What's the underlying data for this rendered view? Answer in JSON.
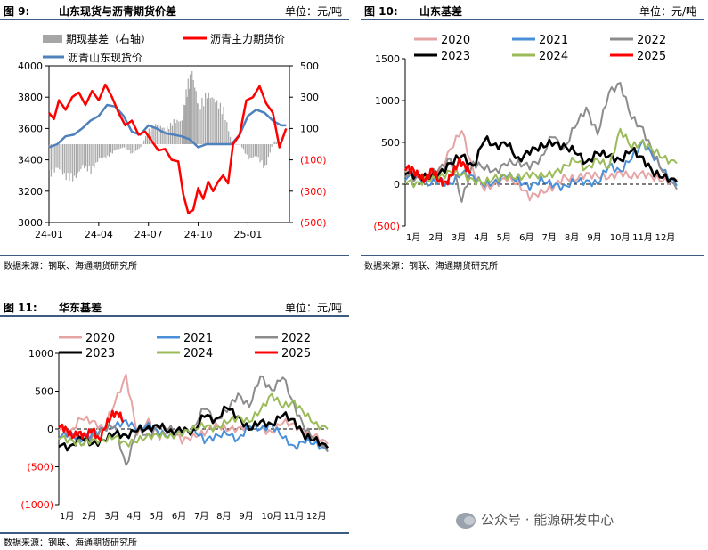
{
  "fig9": {
    "no": "图 9:",
    "title": "山东现货与沥青期货价差",
    "unit": "单位：元/吨",
    "source": "数据来源：钢联、海通期货研究所",
    "legend": [
      "期现基差（右轴）",
      "沥青主力期货价",
      "沥青山东现货价"
    ],
    "colors": {
      "basis": "#a6a6a6",
      "futures": "#ff0000",
      "spot": "#4f81bd"
    }
  },
  "fig10": {
    "no": "图 10:",
    "title": "山东基差",
    "unit": "单位：元/吨",
    "source": "数据来源：钢联、海通期货研究所"
  },
  "fig11": {
    "no": "图 11:",
    "title": "华东基差",
    "unit": "单位：元/吨",
    "source": "数据来源：钢联、海通期货研究所"
  },
  "watermark": {
    "text": "公众号 · 能源研发中心",
    "icon": "wechat-icon"
  },
  "year_colors": {
    "2020": "#e6a4a4",
    "2021": "#4a90d9",
    "2022": "#8c8c8c",
    "2023": "#000000",
    "2024": "#9bbb59",
    "2025": "#ff0000"
  },
  "chart_data": [
    {
      "id": "fig9",
      "type": "line+bar",
      "x_ticks": [
        "24-01",
        "24-04",
        "24-07",
        "24-10",
        "25-01"
      ],
      "x_range": [
        0,
        14.5
      ],
      "left_ticks": [
        3000,
        3200,
        3400,
        3600,
        3800,
        4000
      ],
      "left_range": [
        3000,
        4000
      ],
      "right_ticks": [
        {
          "v": 500,
          "label": "500",
          "neg": false
        },
        {
          "v": 300,
          "label": "300",
          "neg": false
        },
        {
          "v": 100,
          "label": "100",
          "neg": false
        },
        {
          "v": -100,
          "label": "(100)",
          "neg": true
        },
        {
          "v": -300,
          "label": "(300)",
          "neg": true
        },
        {
          "v": -500,
          "label": "(500)",
          "neg": true
        }
      ],
      "right_range": [
        -500,
        500
      ],
      "series": [
        {
          "name": "沥青主力期货价",
          "axis": "left",
          "color": "#ff0000",
          "x": [
            0,
            0.3,
            0.6,
            1,
            1.4,
            1.8,
            2.2,
            2.6,
            3,
            3.4,
            3.8,
            4.2,
            4.6,
            5,
            5.4,
            5.8,
            6.2,
            6.6,
            7,
            7.4,
            7.8,
            8.1,
            8.4,
            8.7,
            9,
            9.3,
            9.6,
            9.9,
            10.2,
            10.5,
            10.8,
            11.1,
            11.5,
            11.9,
            12.3,
            12.7,
            13.1,
            13.5,
            13.9,
            14.3
          ],
          "y": [
            3700,
            3660,
            3780,
            3720,
            3800,
            3830,
            3750,
            3840,
            3780,
            3880,
            3800,
            3700,
            3620,
            3650,
            3560,
            3580,
            3520,
            3460,
            3470,
            3400,
            3390,
            3180,
            3060,
            3080,
            3220,
            3150,
            3260,
            3200,
            3260,
            3300,
            3250,
            3500,
            3560,
            3780,
            3800,
            3870,
            3760,
            3700,
            3480,
            3600
          ]
        },
        {
          "name": "沥青山东现货价",
          "axis": "left",
          "color": "#4f81bd",
          "x": [
            0,
            0.5,
            1,
            1.5,
            2,
            2.5,
            3,
            3.5,
            4,
            4.5,
            5,
            5.5,
            6,
            6.5,
            7,
            7.5,
            8,
            8.5,
            9,
            9.5,
            10,
            10.5,
            11,
            11.5,
            12,
            12.5,
            13,
            13.5,
            14,
            14.3
          ],
          "y": [
            3480,
            3500,
            3550,
            3560,
            3600,
            3650,
            3680,
            3750,
            3740,
            3680,
            3580,
            3560,
            3620,
            3600,
            3570,
            3560,
            3550,
            3530,
            3480,
            3500,
            3500,
            3500,
            3500,
            3560,
            3680,
            3720,
            3700,
            3650,
            3620,
            3620
          ]
        },
        {
          "name": "期现基差（右轴）",
          "axis": "right",
          "type": "bar",
          "color": "#a6a6a6",
          "x": [
            0,
            0.5,
            1,
            1.5,
            2,
            2.5,
            3,
            3.5,
            4,
            4.5,
            5,
            5.5,
            6,
            6.5,
            7,
            7.5,
            8,
            8.3,
            8.6,
            9,
            9.5,
            10,
            10.5,
            11,
            11.5,
            12,
            12.5,
            13,
            13.5,
            14
          ],
          "y": [
            -220,
            -160,
            -230,
            -240,
            -150,
            -190,
            -100,
            -90,
            -40,
            -20,
            -70,
            -20,
            100,
            140,
            100,
            160,
            160,
            400,
            490,
            260,
            350,
            300,
            240,
            0,
            0,
            -100,
            -80,
            -170,
            20,
            20
          ]
        }
      ]
    },
    {
      "id": "fig10",
      "type": "line",
      "x_ticks": [
        "1月",
        "2月",
        "3月",
        "4月",
        "5月",
        "6月",
        "7月",
        "8月",
        "9月",
        "10月",
        "11月",
        "12月"
      ],
      "y_ticks": [
        {
          "v": 1500,
          "label": "1500",
          "neg": false
        },
        {
          "v": 1000,
          "label": "1000",
          "neg": false
        },
        {
          "v": 500,
          "label": "500",
          "neg": false
        },
        {
          "v": 0,
          "label": "0",
          "neg": false
        },
        {
          "v": -500,
          "label": "(500)",
          "neg": true
        }
      ],
      "y_range": [
        -500,
        1500
      ],
      "series": [
        {
          "name": "2020",
          "color": "#e6a4a4",
          "x": [
            0,
            0.5,
            1,
            1.5,
            2,
            2.5,
            3,
            3.5,
            4,
            4.5,
            5,
            5.5,
            6,
            6.5,
            7,
            7.5,
            8,
            8.5,
            9,
            9.5,
            10,
            10.5,
            11,
            11.5,
            12
          ],
          "y": [
            180,
            120,
            60,
            140,
            420,
            650,
            150,
            -50,
            0,
            80,
            0,
            -150,
            -100,
            -40,
            80,
            60,
            120,
            100,
            80,
            140,
            90,
            130,
            80,
            40,
            50
          ]
        },
        {
          "name": "2021",
          "color": "#4a90d9",
          "x": [
            0,
            0.5,
            1,
            1.5,
            2,
            2.5,
            3,
            3.5,
            4,
            4.5,
            5,
            5.5,
            6,
            6.5,
            7,
            7.5,
            8,
            8.5,
            9,
            9.5,
            10,
            10.5,
            11,
            11.5,
            12
          ],
          "y": [
            80,
            100,
            0,
            50,
            0,
            140,
            80,
            0,
            20,
            120,
            40,
            -30,
            50,
            0,
            -40,
            40,
            30,
            10,
            230,
            150,
            320,
            500,
            320,
            130,
            -20
          ]
        },
        {
          "name": "2022",
          "color": "#8c8c8c",
          "x": [
            0,
            0.5,
            1,
            1.5,
            2,
            2.5,
            3,
            3.5,
            4,
            4.5,
            5,
            5.5,
            6,
            6.5,
            7,
            7.5,
            8,
            8.5,
            9,
            9.5,
            10,
            10.5,
            11,
            11.5,
            12
          ],
          "y": [
            120,
            60,
            100,
            180,
            300,
            -200,
            250,
            200,
            150,
            260,
            250,
            220,
            300,
            600,
            400,
            700,
            900,
            600,
            1100,
            1200,
            800,
            650,
            350,
            100,
            -60
          ]
        },
        {
          "name": "2023",
          "color": "#000000",
          "x": [
            0,
            0.5,
            1,
            1.5,
            2,
            2.5,
            3,
            3.5,
            4,
            4.5,
            5,
            5.5,
            6,
            6.5,
            7,
            7.5,
            8,
            8.5,
            9,
            9.5,
            10,
            10.5,
            11,
            11.5,
            12
          ],
          "y": [
            150,
            100,
            80,
            120,
            250,
            350,
            200,
            550,
            450,
            500,
            280,
            400,
            450,
            500,
            450,
            400,
            250,
            380,
            340,
            280,
            420,
            300,
            130,
            80,
            30
          ]
        },
        {
          "name": "2024",
          "color": "#9bbb59",
          "x": [
            0,
            0.5,
            1,
            1.5,
            2,
            2.5,
            3,
            3.5,
            4,
            4.5,
            5,
            5.5,
            6,
            6.5,
            7,
            7.5,
            8,
            8.5,
            9,
            9.5,
            10,
            10.5,
            11,
            11.5,
            12
          ],
          "y": [
            40,
            0,
            60,
            80,
            150,
            120,
            40,
            20,
            80,
            100,
            80,
            120,
            100,
            120,
            200,
            300,
            180,
            300,
            200,
            650,
            450,
            500,
            400,
            300,
            250
          ]
        },
        {
          "name": "2025",
          "color": "#ff0000",
          "x": [
            0,
            0.3,
            0.6,
            0.9,
            1.2,
            1.5,
            1.8,
            2.1,
            2.4,
            2.7,
            2.9
          ],
          "y": [
            200,
            180,
            100,
            50,
            180,
            40,
            10,
            140,
            280,
            200,
            150
          ]
        }
      ]
    },
    {
      "id": "fig11",
      "type": "line",
      "x_ticks": [
        "1月",
        "2月",
        "3月",
        "4月",
        "5月",
        "6月",
        "7月",
        "8月",
        "9月",
        "10月",
        "11月",
        "12月"
      ],
      "y_ticks": [
        {
          "v": 1000,
          "label": "1000",
          "neg": false
        },
        {
          "v": 500,
          "label": "500",
          "neg": false
        },
        {
          "v": 0,
          "label": "0",
          "neg": false
        },
        {
          "v": -500,
          "label": "(500)",
          "neg": true
        },
        {
          "v": -1000,
          "label": "(1000)",
          "neg": true
        }
      ],
      "y_range": [
        -1000,
        1000
      ],
      "series": [
        {
          "name": "2020",
          "color": "#e6a4a4",
          "x": [
            0,
            0.5,
            1,
            1.5,
            2,
            2.5,
            3,
            3.5,
            4,
            4.5,
            5,
            5.5,
            6,
            6.5,
            7,
            7.5,
            8,
            8.5,
            9,
            9.5,
            10,
            10.5,
            11,
            11.5,
            12
          ],
          "y": [
            20,
            -50,
            150,
            100,
            0,
            350,
            700,
            -50,
            100,
            -100,
            0,
            -150,
            -100,
            -50,
            50,
            0,
            0,
            50,
            0,
            -50,
            100,
            50,
            -50,
            -100,
            -200
          ]
        },
        {
          "name": "2021",
          "color": "#4a90d9",
          "x": [
            0,
            0.5,
            1,
            1.5,
            2,
            2.5,
            3,
            3.5,
            4,
            4.5,
            5,
            5.5,
            6,
            6.5,
            7,
            7.5,
            8,
            8.5,
            9,
            9.5,
            10,
            10.5,
            11,
            11.5,
            12
          ],
          "y": [
            -100,
            -50,
            -150,
            -60,
            0,
            40,
            100,
            0,
            50,
            -50,
            -100,
            -50,
            0,
            -150,
            -100,
            -50,
            -150,
            50,
            0,
            50,
            -100,
            -250,
            -150,
            -200,
            -300
          ]
        },
        {
          "name": "2022",
          "color": "#8c8c8c",
          "x": [
            0,
            0.5,
            1,
            1.5,
            2,
            2.5,
            3,
            3.5,
            4,
            4.5,
            5,
            5.5,
            6,
            6.5,
            7,
            7.5,
            8,
            8.5,
            9,
            9.5,
            10,
            10.5,
            11,
            11.5,
            12
          ],
          "y": [
            -100,
            -150,
            -200,
            -100,
            0,
            50,
            -500,
            0,
            -100,
            50,
            0,
            -50,
            0,
            300,
            100,
            250,
            450,
            300,
            700,
            500,
            700,
            300,
            0,
            -150,
            -300
          ]
        },
        {
          "name": "2023",
          "color": "#000000",
          "x": [
            0,
            0.5,
            1,
            1.5,
            2,
            2.5,
            3,
            3.5,
            4,
            4.5,
            5,
            5.5,
            6,
            6.5,
            7,
            7.5,
            8,
            8.5,
            9,
            9.5,
            10,
            10.5,
            11,
            11.5,
            12
          ],
          "y": [
            -200,
            -250,
            -100,
            -200,
            -150,
            -50,
            -100,
            0,
            0,
            50,
            -50,
            0,
            -50,
            200,
            100,
            300,
            150,
            0,
            100,
            50,
            200,
            100,
            -100,
            -150,
            -250
          ]
        },
        {
          "name": "2024",
          "color": "#9bbb59",
          "x": [
            0,
            0.5,
            1,
            1.5,
            2,
            2.5,
            3,
            3.5,
            4,
            4.5,
            5,
            5.5,
            6,
            6.5,
            7,
            7.5,
            8,
            8.5,
            9,
            9.5,
            10,
            10.5,
            11,
            11.5,
            12
          ],
          "y": [
            -100,
            -150,
            -200,
            -150,
            -150,
            -100,
            -200,
            -150,
            -100,
            -80,
            -100,
            -50,
            0,
            50,
            0,
            100,
            150,
            100,
            250,
            450,
            300,
            350,
            200,
            50,
            0
          ]
        },
        {
          "name": "2025",
          "color": "#ff0000",
          "x": [
            0,
            0.3,
            0.6,
            0.9,
            1.2,
            1.5,
            1.8,
            2.1,
            2.4,
            2.7,
            2.9
          ],
          "y": [
            50,
            0,
            -100,
            -50,
            -100,
            0,
            -150,
            50,
            200,
            200,
            100
          ]
        }
      ]
    }
  ]
}
